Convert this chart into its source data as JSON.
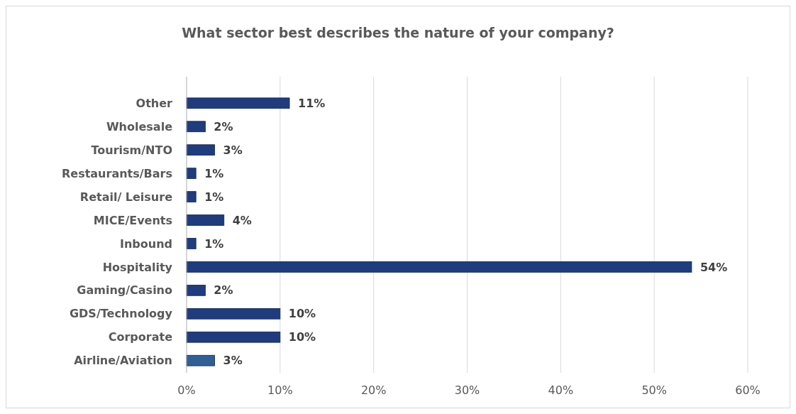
{
  "chart_data": {
    "type": "bar",
    "orientation": "horizontal",
    "title": "What sector best describes the nature of your company?",
    "categories": [
      "Other",
      "Wholesale",
      "Tourism/NTO",
      "Restaurants/Bars",
      "Retail/ Leisure",
      "MICE/Events",
      "Inbound",
      "Hospitality",
      "Gaming/Casino",
      "GDS/Technology",
      "Corporate",
      "Airline/Aviation"
    ],
    "values": [
      11,
      2,
      3,
      1,
      1,
      4,
      1,
      54,
      2,
      10,
      10,
      3
    ],
    "colors": [
      "#1f3c7f",
      "#1f3c7f",
      "#1f3c7f",
      "#1f3c7f",
      "#1f3c7f",
      "#1f3c7f",
      "#1f3c7f",
      "#1f3c7f",
      "#1f3c7f",
      "#1f3c7f",
      "#1f3c7f",
      "#2f5f95"
    ],
    "xlim": [
      0,
      60
    ],
    "xticks": [
      {
        "value": 0,
        "label": "0%"
      },
      {
        "value": 10,
        "label": "10%"
      },
      {
        "value": 20,
        "label": "20%"
      },
      {
        "value": 30,
        "label": "30%"
      },
      {
        "value": 40,
        "label": "40%"
      },
      {
        "value": 50,
        "label": "50%"
      },
      {
        "value": 60,
        "label": "60%"
      }
    ],
    "value_labels": [
      "11%",
      "2%",
      "3%",
      "1%",
      "1%",
      "4%",
      "1%",
      "54%",
      "2%",
      "10%",
      "10%",
      "3%"
    ],
    "grid": "x"
  }
}
